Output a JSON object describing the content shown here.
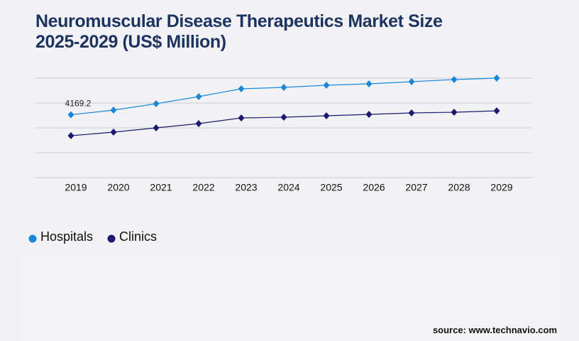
{
  "chart_data": {
    "type": "line",
    "title": "Neuromuscular Disease Therapeutics Market Size 2025-2029 (US$ Million)",
    "categories": [
      "2019",
      "2020",
      "2021",
      "2022",
      "2023",
      "2024",
      "2025",
      "2026",
      "2027",
      "2028",
      "2029"
    ],
    "series": [
      {
        "name": "Hospitals",
        "color": "#1a88d6",
        "values": [
          4169.2,
          4479,
          4903,
          5374,
          5893,
          5987,
          6129,
          6223,
          6364,
          6506,
          6600
        ]
      },
      {
        "name": "Clinics",
        "color": "#1c1a6e",
        "values": [
          2781,
          3017,
          3300,
          3583,
          3960,
          4007,
          4101,
          4196,
          4290,
          4337,
          4431
        ]
      }
    ],
    "ylim": [
      0,
      6600
    ],
    "yticks": [
      0,
      1650,
      3300,
      4950,
      6600
    ],
    "grid": true,
    "source": "source: www.technavio.com"
  }
}
